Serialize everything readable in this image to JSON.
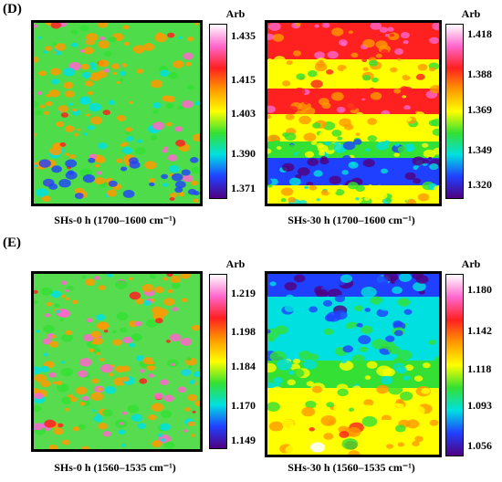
{
  "panels": {
    "D": {
      "label": "(D)"
    },
    "E": {
      "label": "(E)"
    }
  },
  "chart_data": [
    {
      "type": "heatmap",
      "title": "",
      "caption": "SHs-0 h (1700–1600 cm⁻¹)",
      "colorbar": {
        "title": "Arb",
        "ticks": [
          1.435,
          1.415,
          1.403,
          1.39,
          1.371
        ],
        "tick_labels": [
          "1.435",
          "1.415",
          "1.403",
          "1.390",
          "1.371"
        ]
      },
      "grid": false,
      "description_of_field": "mostly green (~1.403) with scattered yellow/red highs and blue lows"
    },
    {
      "type": "heatmap",
      "title": "",
      "caption": "SHs-30 h (1700–1600 cm⁻¹)",
      "colorbar": {
        "title": "Arb",
        "ticks": [
          1.418,
          1.388,
          1.369,
          1.349,
          1.32
        ],
        "tick_labels": [
          "1.418",
          "1.388",
          "1.369",
          "1.349",
          "1.320"
        ]
      },
      "grid": false
    },
    {
      "type": "heatmap",
      "title": "",
      "caption": "SHs-0 h (1560–1535 cm⁻¹)",
      "colorbar": {
        "title": "Arb",
        "ticks": [
          1.219,
          1.198,
          1.184,
          1.17,
          1.149
        ],
        "tick_labels": [
          "1.219",
          "1.198",
          "1.184",
          "1.170",
          "1.149"
        ]
      },
      "grid": false
    },
    {
      "type": "heatmap",
      "title": "",
      "caption": "SHs-30 h (1560–1535 cm⁻¹)",
      "colorbar": {
        "title": "Arb",
        "ticks": [
          1.18,
          1.142,
          1.118,
          1.093,
          1.056
        ],
        "tick_labels": [
          "1.180",
          "1.142",
          "1.118",
          "1.093",
          "1.056"
        ]
      },
      "grid": false
    }
  ],
  "colors": {
    "scale": [
      "#ffffff",
      "#ff66cc",
      "#ff2020",
      "#ff9900",
      "#ffff00",
      "#33e033",
      "#00e0e0",
      "#2040ff",
      "#500080"
    ]
  }
}
